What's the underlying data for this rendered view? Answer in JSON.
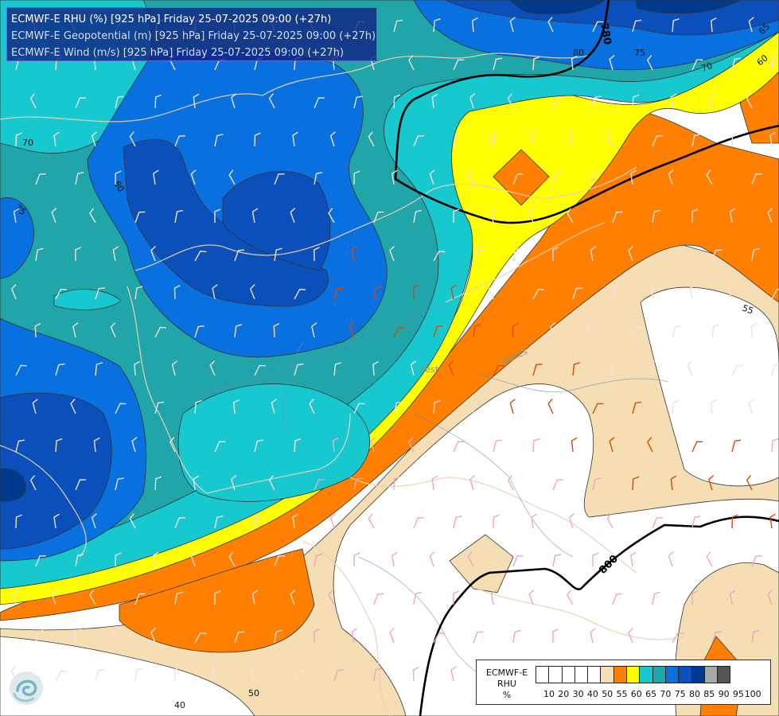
{
  "header": {
    "line1": "ECMWF-E RHU (%) [925 hPa] Friday 25-07-2025 09:00 (+27h)",
    "line2": "ECMWF-E Geopotential (m) [925 hPa] Friday 25-07-2025 09:00 (+27h)",
    "line3": "ECMWF-E Wind (m/s) [925 hPa] Friday 25-07-2025 09:00 (+27h)"
  },
  "legend": {
    "line1": "ECMWF-E",
    "line2": "RHU",
    "line3": "%",
    "ticks": [
      "10",
      "20",
      "30",
      "40",
      "50",
      "55",
      "60",
      "65",
      "70",
      "75",
      "80",
      "85",
      "90",
      "95",
      "100"
    ],
    "colors": [
      "#ffffff",
      "#ffffff",
      "#ffffff",
      "#ffffff",
      "#ffffff",
      "#f5deb3",
      "#ff8000",
      "#ffff00",
      "#17c9cf",
      "#20a5a8",
      "#0970e0",
      "#0a4fba",
      "#003a8c",
      "#a9a9a9",
      "#555555"
    ]
  },
  "contour_labels": {
    "rhu": [
      "70",
      "75",
      "80",
      "60",
      "70",
      "75",
      "80",
      "65",
      "55",
      "50",
      "40"
    ],
    "geopotential": [
      "780",
      "800"
    ]
  },
  "place_labels": [
    "Pest",
    "Békés"
  ],
  "icons": {
    "logo": "ecmwf-logo-swirl-icon"
  }
}
